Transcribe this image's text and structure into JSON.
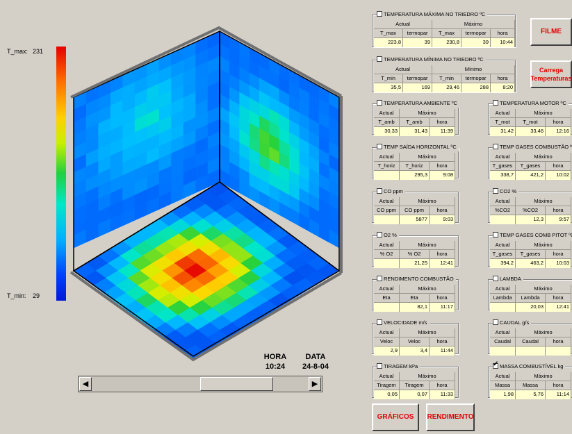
{
  "colorbar": {
    "max_label": "T_max:",
    "max_value": "231",
    "min_label": "T_min:",
    "min_value": "29"
  },
  "time": {
    "hora_label": "HORA",
    "hora_value": "10:24",
    "data_label": "DATA",
    "data_value": "24-8-04"
  },
  "scroll": {
    "left_arrow": "◀",
    "right_arrow": "▶"
  },
  "panels": {
    "tmax": {
      "title": "TEMPERATURA  MÁXIMA NO TRIEDRO  ºC",
      "checked": false,
      "actual_label": "Actual",
      "max_label": "Máximo",
      "headers": [
        "T_max",
        "termopar",
        "T_max",
        "termopar",
        "hora"
      ],
      "values": [
        "223,8",
        "39",
        "230,8",
        "39",
        "10:44"
      ]
    },
    "tmin": {
      "title": "TEMPERATURA  MÍNIMA NO TRIEDRO  ºC",
      "checked": false,
      "actual_label": "Actual",
      "max_label": "Mínimo",
      "headers": [
        "T_min",
        "termopar",
        "T_min",
        "termopar",
        "hora"
      ],
      "values": [
        "35,5",
        "169",
        "29,46",
        "288",
        "8:20"
      ]
    },
    "tamb": {
      "title": "TEMPERATURA AMBIENTE ºC",
      "checked": false,
      "actual_label": "Actual",
      "max_label": "Máximo",
      "headers": [
        "T_amb",
        "T_amb",
        "hora"
      ],
      "values": [
        "30,33",
        "31,43",
        "11:39"
      ]
    },
    "tmot": {
      "title": "TEMPERATURA MOTOR ºC",
      "checked": false,
      "actual_label": "Actual",
      "max_label": "Máximo",
      "headers": [
        "T_mot",
        "T_mot",
        "hora"
      ],
      "values": [
        "31,42",
        "33,46",
        "12:16"
      ]
    },
    "thoriz": {
      "title": "TEMP SAÍDA HORIZONTAL ºC",
      "checked": false,
      "actual_label": "Actual",
      "max_label": "Máximo",
      "headers": [
        "T_horiz",
        "T_horiz",
        "hora"
      ],
      "values": [
        "",
        "295,3",
        "9:08"
      ]
    },
    "tgases": {
      "title": "TEMP GASES COMBUSTÃO ºC",
      "checked": false,
      "actual_label": "Actual",
      "max_label": "Máximo",
      "headers": [
        "T_gases",
        "T_gases",
        "hora"
      ],
      "values": [
        "338,7",
        "421,2",
        "10:02"
      ]
    },
    "co": {
      "title": "CO  ppm",
      "checked": false,
      "actual_label": "Actual",
      "max_label": "Máximo",
      "headers": [
        "CO ppm",
        "CO ppm",
        "hora"
      ],
      "values": [
        "",
        "5877",
        "9:03"
      ]
    },
    "co2": {
      "title": "CO2  %",
      "checked": false,
      "actual_label": "Actual",
      "max_label": "Máximo",
      "headers": [
        "%CO2",
        "%CO2",
        "hora"
      ],
      "values": [
        "",
        "12,3",
        "9:57"
      ]
    },
    "o2": {
      "title": "O2  %",
      "checked": false,
      "actual_label": "Actual",
      "max_label": "Máximo",
      "headers": [
        "% O2",
        "% O2",
        "hora"
      ],
      "values": [
        "",
        "21,25",
        "12:41"
      ]
    },
    "tpitot": {
      "title": "TEMP GASES COMB PITOT ºC",
      "checked": false,
      "actual_label": "Actual",
      "max_label": "Máximo",
      "headers": [
        "T_gases",
        "T_gases",
        "hora"
      ],
      "values": [
        "394,2",
        "463,2",
        "10:03"
      ]
    },
    "eta": {
      "title": "RENDIMENTO COMBUSTÃO",
      "checked": false,
      "actual_label": "Actual",
      "max_label": "Máximo",
      "headers": [
        "Eta",
        "Eta",
        "hora"
      ],
      "values": [
        "",
        "82,1",
        "11:17"
      ]
    },
    "lambda": {
      "title": "LAMBDA",
      "checked": false,
      "actual_label": "Actual",
      "max_label": "Máximo",
      "headers": [
        "Lambda",
        "Lambda",
        "hora"
      ],
      "values": [
        "",
        "20,03",
        "12:41"
      ]
    },
    "veloc": {
      "title": "VELOCIDADE m/s",
      "checked": false,
      "actual_label": "Actual",
      "max_label": "Máximo",
      "headers": [
        "Veloc",
        "Veloc",
        "hora"
      ],
      "values": [
        "2,9",
        "3,4",
        "11:44"
      ]
    },
    "caudal": {
      "title": "CAUDAL  g/s",
      "checked": false,
      "actual_label": "Actual",
      "max_label": "Máximo",
      "headers": [
        "Caudal",
        "Caudal",
        "hora"
      ],
      "values": [
        "",
        "",
        ""
      ]
    },
    "tiragem": {
      "title": "TIRAGEM kPa",
      "checked": false,
      "actual_label": "Actual",
      "max_label": "Máximo",
      "headers": [
        "Tiragem",
        "Tiragem",
        "hora"
      ],
      "values": [
        "0,05",
        "0,07",
        "11:33"
      ]
    },
    "massa": {
      "title": "MASSA COMBUSTÍVEL  kg",
      "checked": true,
      "actual_label": "Actual",
      "max_label": "Máximo",
      "headers": [
        "Massa",
        "Massa",
        "hora"
      ],
      "values": [
        "1,98",
        "5,76",
        "11:14"
      ]
    }
  },
  "buttons": {
    "filme": "FILME",
    "carrega": "Carrega Temperaturas",
    "graficos": "GRÁFICOS",
    "rendimento": "RENDIMENTO"
  },
  "colors": {
    "window_bg": "#d4d0c8",
    "value_bg": "#ffffd0",
    "button_text": "#e00000"
  }
}
